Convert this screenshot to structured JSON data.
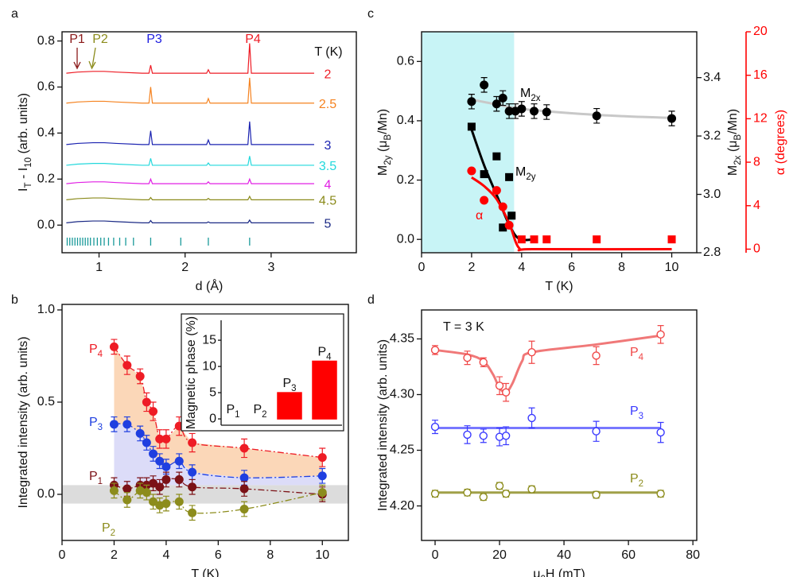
{
  "chart_data": [
    {
      "type": "line",
      "panel_label": "a",
      "xlabel": [
        "d (Å)"
      ],
      "ylabel": [
        "I",
        "T",
        " - I",
        "10",
        " (arb. units)"
      ],
      "xlim": [
        0.57,
        3.99
      ],
      "ylim": [
        -0.12,
        0.84
      ],
      "xticks": [
        1,
        2,
        3
      ],
      "yticks": [
        {
          "value": 0,
          "label": "0.0"
        },
        0.2,
        0.4,
        0.6,
        0.8
      ],
      "legend_title": "T (K)",
      "annotations": [
        "P1",
        "P2",
        "P3",
        "P4"
      ],
      "annotation_colors": [
        "#8b1a1a",
        "#8c8c1c",
        "#2020e0",
        "#ee1c25"
      ],
      "x": [
        0.62,
        0.75,
        0.93,
        1.06,
        1.2,
        1.5,
        1.58,
        1.6,
        1.62,
        2.0,
        2.25,
        2.27,
        2.29,
        2.73,
        2.75,
        2.77,
        3.0,
        3.5
      ],
      "series": [
        {
          "name": "2",
          "color": "#ee1c25",
          "values": [
            0.66,
            0.665,
            0.668,
            0.668,
            0.665,
            0.66,
            0.66,
            0.695,
            0.66,
            0.66,
            0.66,
            0.675,
            0.66,
            0.66,
            0.79,
            0.66,
            0.66,
            0.66
          ]
        },
        {
          "name": "2.5",
          "color": "#f5821f",
          "values": [
            0.53,
            0.535,
            0.538,
            0.538,
            0.535,
            0.53,
            0.53,
            0.6,
            0.53,
            0.53,
            0.53,
            0.55,
            0.53,
            0.53,
            0.64,
            0.53,
            0.53,
            0.53
          ]
        },
        {
          "name": "3",
          "color": "#1a22b0",
          "values": [
            0.35,
            0.355,
            0.358,
            0.358,
            0.355,
            0.35,
            0.35,
            0.41,
            0.35,
            0.35,
            0.35,
            0.37,
            0.35,
            0.35,
            0.45,
            0.35,
            0.35,
            0.35
          ]
        },
        {
          "name": "3.5",
          "color": "#22d8dc",
          "values": [
            0.26,
            0.265,
            0.268,
            0.268,
            0.265,
            0.26,
            0.26,
            0.29,
            0.26,
            0.26,
            0.26,
            0.27,
            0.26,
            0.26,
            0.3,
            0.26,
            0.26,
            0.26
          ]
        },
        {
          "name": "4",
          "color": "#e11fe4",
          "values": [
            0.18,
            0.185,
            0.188,
            0.188,
            0.185,
            0.18,
            0.18,
            0.2,
            0.18,
            0.18,
            0.18,
            0.188,
            0.18,
            0.18,
            0.2,
            0.18,
            0.18,
            0.18
          ]
        },
        {
          "name": "4.5",
          "color": "#8a8a1a",
          "values": [
            0.11,
            0.115,
            0.118,
            0.118,
            0.115,
            0.11,
            0.11,
            0.12,
            0.11,
            0.11,
            0.11,
            0.116,
            0.11,
            0.11,
            0.125,
            0.11,
            0.11,
            0.11
          ]
        },
        {
          "name": "5",
          "color": "#1b2a85",
          "values": [
            0.01,
            0.015,
            0.018,
            0.018,
            0.015,
            0.01,
            0.01,
            0.02,
            0.01,
            0.01,
            0.01,
            0.014,
            0.01,
            0.01,
            0.022,
            0.01,
            0.01,
            0.01
          ]
        }
      ],
      "reflections": [
        0.63,
        0.66,
        0.69,
        0.72,
        0.75,
        0.78,
        0.81,
        0.84,
        0.87,
        0.9,
        0.94,
        0.98,
        1.02,
        1.06,
        1.11,
        1.17,
        1.24,
        1.31,
        1.4,
        1.6,
        1.95,
        2.27,
        2.75
      ],
      "reflection_color": "#1a9a9a"
    },
    {
      "type": "scatter",
      "panel_label": "b",
      "xlabel": [
        "T (K)"
      ],
      "ylabel": [
        "Integrated intensity (arb. units)"
      ],
      "xlim": [
        0,
        11
      ],
      "ylim": [
        -0.25,
        1.03
      ],
      "xticks": [
        0,
        2,
        4,
        6,
        8,
        10
      ],
      "yticks": [
        {
          "value": 0,
          "label": "0.0"
        },
        0.5,
        {
          "value": 1,
          "label": "1.0"
        }
      ],
      "band": [
        -0.05,
        0.05
      ],
      "band_color": "#dcdcdc",
      "x": [
        2,
        2.5,
        3,
        3.25,
        3.5,
        3.75,
        4,
        4.5,
        5,
        7,
        10
      ],
      "series": [
        {
          "name": "P4",
          "color": "#ee1c25",
          "marker": "circle",
          "line": "dashdot",
          "fill_color": "#fbd7b8",
          "values": [
            0.8,
            0.7,
            0.64,
            0.5,
            0.45,
            0.3,
            0.3,
            0.37,
            0.28,
            0.25,
            0.2
          ],
          "errors": [
            0.04,
            0.05,
            0.04,
            0.05,
            0.05,
            0.05,
            0.05,
            0.05,
            0.05,
            0.05,
            0.05
          ]
        },
        {
          "name": "P3",
          "color": "#1f3fe0",
          "marker": "circle",
          "line": "dashdot",
          "fill_color": "#dcdcf8",
          "values": [
            0.38,
            0.38,
            0.33,
            0.28,
            0.22,
            0.18,
            0.15,
            0.18,
            0.12,
            0.09,
            0.1
          ],
          "errors": [
            0.04,
            0.04,
            0.04,
            0.04,
            0.04,
            0.04,
            0.04,
            0.04,
            0.04,
            0.04,
            0.04
          ]
        },
        {
          "name": "P1",
          "color": "#7b1116",
          "marker": "circle",
          "line": "dashdot",
          "values": [
            0.05,
            0.03,
            0.05,
            0.05,
            0.06,
            0.04,
            0.08,
            0.08,
            0.04,
            0.03,
            0
          ],
          "errors": [
            0.04,
            0.04,
            0.04,
            0.04,
            0.04,
            0.04,
            0.04,
            0.04,
            0.04,
            0.04,
            0.04
          ]
        },
        {
          "name": "P2",
          "color": "#8c8c1c",
          "marker": "circle",
          "line": "dashdot",
          "values": [
            0.02,
            -0.03,
            0.02,
            0.01,
            -0.04,
            -0.06,
            -0.05,
            -0.04,
            -0.1,
            -0.08,
            0.01
          ],
          "errors": [
            0.04,
            0.04,
            0.04,
            0.04,
            0.04,
            0.04,
            0.04,
            0.04,
            0.04,
            0.04,
            0.04
          ]
        }
      ]
    },
    {
      "type": "bar",
      "ylabel": [
        "Magnetic phase (%)"
      ],
      "categories": [
        "P1",
        "P2",
        "P3",
        "P4"
      ],
      "values": [
        0,
        0,
        5,
        11
      ],
      "color": "#ff0000",
      "ylim": [
        -1.2,
        18.8
      ],
      "yticks": [
        0,
        5,
        10,
        15
      ]
    },
    {
      "type": "scatter",
      "panel_label": "c",
      "xlabel": [
        "T (K)"
      ],
      "ylabel": [
        "M",
        "2y",
        " (μ",
        "B",
        "/Mn)"
      ],
      "y2label": [
        "M",
        "2x",
        " (μ",
        "B",
        "/Mn)"
      ],
      "y3label": [
        "α (degrees)"
      ],
      "xlim": [
        0,
        11
      ],
      "ylim": [
        -0.045,
        0.7
      ],
      "y2lim": [
        2.8,
        3.557
      ],
      "y3lim": [
        -0.33,
        20
      ],
      "xticks": [
        0,
        2,
        4,
        6,
        8,
        10
      ],
      "yticks": [
        {
          "value": 0,
          "label": "0.0"
        },
        0.2,
        0.4,
        0.6
      ],
      "y2ticks": [
        2.8,
        {
          "value": 3,
          "label": "3.0"
        },
        3.2,
        3.4
      ],
      "y3ticks": [
        0,
        4,
        8,
        12,
        16,
        20
      ],
      "y3_color": "#ff0000",
      "shade_x": [
        0,
        3.7
      ],
      "shade_color": "#c8f4f6",
      "series": [
        {
          "name": "M2x",
          "color": "#000000",
          "marker": "circle",
          "axis": "y2",
          "x": [
            2,
            2.5,
            3,
            3.25,
            3.5,
            3.75,
            4,
            4.5,
            5,
            7,
            10
          ],
          "values": [
            3.318,
            3.375,
            3.31,
            3.33,
            3.285,
            3.285,
            3.293,
            3.285,
            3.282,
            3.269,
            3.26
          ],
          "errors": [
            0.025,
            0.025,
            0.025,
            0.025,
            0.025,
            0.025,
            0.025,
            0.025,
            0.025,
            0.025,
            0.025
          ]
        },
        {
          "color": "#c8c8c8",
          "line": "solid",
          "axis": "y2",
          "x": [
            2,
            3,
            4,
            6,
            8,
            10
          ],
          "values": [
            3.325,
            3.308,
            3.293,
            3.278,
            3.268,
            3.262
          ]
        },
        {
          "color": "#000000",
          "line": "solid",
          "x": [
            2,
            2.5,
            3,
            3.5,
            3.9,
            4.5
          ],
          "values": [
            0.37,
            0.25,
            0.15,
            0.05,
            0.002,
            0
          ]
        },
        {
          "color": "#ff0000",
          "line": "solid",
          "axis": "y3",
          "x": [
            2,
            2.5,
            3,
            3.5,
            3.9,
            4.5,
            10
          ],
          "values": [
            6.6,
            5.8,
            4.6,
            2.4,
            0.1,
            0,
            0
          ]
        },
        {
          "name": "M2y",
          "color": "#000000",
          "marker": "square",
          "x": [
            2,
            2.5,
            3,
            3.25,
            3.5,
            3.6
          ],
          "values": [
            0.38,
            0.22,
            0.28,
            0.04,
            0.21,
            0.08
          ]
        },
        {
          "color": "#ff0000",
          "marker": "square",
          "x": [
            4,
            4.5,
            5,
            7,
            10
          ],
          "values": [
            0,
            0,
            0,
            0,
            0
          ]
        },
        {
          "name": "α",
          "color": "#ff0000",
          "marker": "circle",
          "axis": "y3",
          "x": [
            2,
            2.5,
            3,
            3.25,
            3.5
          ],
          "values": [
            7.2,
            4.5,
            5.4,
            3.9,
            2.2
          ]
        }
      ]
    },
    {
      "type": "scatter",
      "panel_label": "d",
      "xlabel": [
        "μ",
        "0",
        "H (mT)"
      ],
      "ylabel": [
        "Integrated intensity (arb. units)"
      ],
      "xlim": [
        -4.2,
        81.2
      ],
      "ylim": [
        4.169,
        4.376
      ],
      "xticks": [
        0,
        20,
        40,
        60,
        80
      ],
      "yticks": [
        {
          "value": 4.2,
          "label": "4.20"
        },
        4.25,
        {
          "value": 4.3,
          "label": "4.30"
        },
        4.35
      ],
      "annotations": [
        "T = 3 K"
      ],
      "series": [
        {
          "name": "P4",
          "color": "#f04848",
          "marker": "open-circle",
          "x": [
            0,
            10,
            15,
            20,
            22,
            30,
            50,
            70
          ],
          "values": [
            4.34,
            4.333,
            4.329,
            4.308,
            4.302,
            4.338,
            4.335,
            4.354
          ],
          "errors": [
            0.004,
            0.006,
            0.004,
            0.008,
            0.008,
            0.01,
            0.008,
            0.008
          ]
        },
        {
          "color": "#f07878",
          "line": "solid",
          "x": [
            0,
            10,
            15,
            18,
            20,
            22,
            24,
            27,
            30,
            50,
            70
          ],
          "values": [
            4.34,
            4.336,
            4.33,
            4.318,
            4.306,
            4.302,
            4.31,
            4.33,
            4.338,
            4.345,
            4.353
          ]
        },
        {
          "name": "P3",
          "color": "#3a3aff",
          "marker": "open-circle",
          "x": [
            0,
            10,
            15,
            20,
            22,
            30,
            50,
            70
          ],
          "values": [
            4.271,
            4.264,
            4.263,
            4.262,
            4.263,
            4.279,
            4.267,
            4.266
          ],
          "errors": [
            0.006,
            0.008,
            0.006,
            0.008,
            0.008,
            0.009,
            0.009,
            0.009
          ]
        },
        {
          "color": "#7878ff",
          "line": "solid",
          "x": [
            0,
            70
          ],
          "values": [
            4.27,
            4.27
          ]
        },
        {
          "name": "P2",
          "color": "#8c8c1c",
          "marker": "open-circle",
          "x": [
            0,
            10,
            15,
            20,
            22,
            30,
            50,
            70
          ],
          "values": [
            4.211,
            4.212,
            4.208,
            4.218,
            4.211,
            4.215,
            4.21,
            4.211
          ],
          "errors": [
            0.003,
            0.003,
            0.003,
            0.003,
            0.003,
            0.003,
            0.003,
            0.003
          ]
        },
        {
          "color": "#a0a048",
          "line": "solid",
          "x": [
            0,
            70
          ],
          "values": [
            4.212,
            4.212
          ]
        }
      ]
    }
  ]
}
